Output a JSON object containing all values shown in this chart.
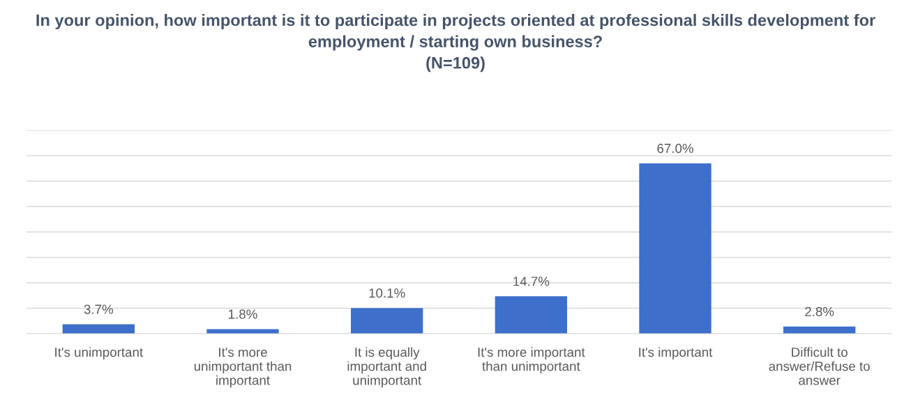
{
  "chart_data": {
    "type": "bar",
    "title": "In your opinion, how important is it to participate in projects oriented at professional skills development for employment / starting own business?\n(N=109)",
    "categories": [
      "It's unimportant",
      "It's more unimportant than important",
      "It is equally important and unimportant",
      "It's more important than unimportant",
      "It's important",
      "Difficult to answer/Refuse to answer"
    ],
    "values": [
      3.7,
      1.8,
      10.1,
      14.7,
      67.0,
      2.8
    ],
    "value_labels": [
      "3.7%",
      "1.8%",
      "10.1%",
      "14.7%",
      "67.0%",
      "2.8%"
    ],
    "color": "#3d6fcb",
    "ylim": [
      0,
      80
    ],
    "yticks": [
      {
        "value": 0,
        "label": null
      },
      {
        "value": 10,
        "label": null
      },
      {
        "value": 20,
        "label": null
      },
      {
        "value": 30,
        "label": null
      },
      {
        "value": 40,
        "label": null
      },
      {
        "value": 50,
        "label": null
      },
      {
        "value": 60,
        "label": null
      },
      {
        "value": 70,
        "label": null
      },
      {
        "value": 80,
        "label": null
      }
    ],
    "tick_labels": "x",
    "grid": "y"
  }
}
